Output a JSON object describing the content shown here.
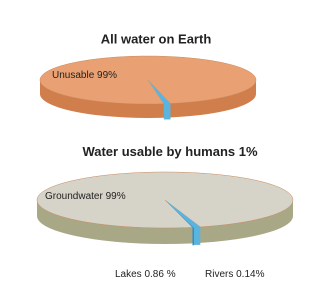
{
  "chart_data": [
    {
      "type": "pie",
      "title": "All water on Earth",
      "categories": [
        "Unusable",
        "Water usable by humans"
      ],
      "values": [
        99,
        1
      ],
      "value_labels": [
        "99%",
        "1%"
      ],
      "colors": [
        "#e9a173",
        "#5ab4e0"
      ]
    },
    {
      "type": "pie",
      "categories": [
        "Groundwater",
        "Lakes",
        "Rivers"
      ],
      "values": [
        99,
        0.86,
        0.14
      ],
      "value_labels": [
        "99%",
        "0.86 %",
        "0.14%"
      ],
      "colors": [
        "#d6d3c8",
        "#5ab4e0",
        "#2f8fc4"
      ]
    }
  ]
}
